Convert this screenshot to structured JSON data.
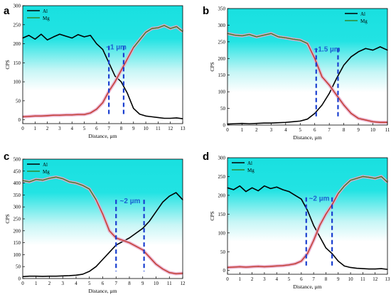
{
  "chart_data": [
    {
      "panel": "a",
      "type": "line",
      "xlabel": "Distance, µm",
      "ylabel": "CPS",
      "xlim": [
        0,
        13
      ],
      "ylim": [
        -10,
        300
      ],
      "xticks": [
        0,
        1,
        2,
        3,
        4,
        5,
        6,
        7,
        8,
        9,
        10,
        11,
        12,
        13
      ],
      "yticks": [
        0,
        50,
        100,
        150,
        200,
        250,
        300
      ],
      "legend": "top-left",
      "annotation": "~1 µm",
      "markers": [
        7.0,
        8.2
      ],
      "series": [
        {
          "name": "Al",
          "color": "#000000",
          "x": [
            0,
            0.5,
            1,
            1.5,
            2,
            2.5,
            3,
            3.5,
            4,
            4.5,
            5,
            5.5,
            6,
            6.5,
            7,
            7.5,
            8,
            8.5,
            9,
            9.5,
            10,
            10.5,
            11,
            11.5,
            12,
            12.5,
            13
          ],
          "y": [
            215,
            222,
            212,
            225,
            210,
            218,
            225,
            220,
            215,
            224,
            218,
            222,
            200,
            185,
            150,
            115,
            100,
            70,
            30,
            15,
            10,
            8,
            6,
            4,
            4,
            5,
            3
          ]
        },
        {
          "name": "Mg",
          "color": "#c0392b",
          "x": [
            0,
            0.5,
            1,
            1.5,
            2,
            2.5,
            3,
            3.5,
            4,
            4.5,
            5,
            5.5,
            6,
            6.5,
            7,
            7.5,
            8,
            8.5,
            9,
            9.5,
            10,
            10.5,
            11,
            11.5,
            12,
            12.5,
            13
          ],
          "y": [
            8,
            9,
            10,
            10,
            11,
            12,
            12,
            13,
            13,
            14,
            14,
            18,
            28,
            45,
            75,
            100,
            130,
            160,
            190,
            210,
            230,
            240,
            242,
            248,
            240,
            245,
            232
          ]
        }
      ]
    },
    {
      "panel": "b",
      "type": "line",
      "xlabel": "Distance, µm",
      "ylabel": "CPS",
      "xlim": [
        0,
        11
      ],
      "ylim": [
        0,
        350
      ],
      "xticks": [
        0,
        1,
        2,
        3,
        4,
        5,
        6,
        7,
        8,
        9,
        10,
        11
      ],
      "yticks": [
        0,
        50,
        100,
        150,
        200,
        250,
        300,
        350
      ],
      "legend": "top-right",
      "annotation": "~1.5 µm",
      "markers": [
        6.1,
        7.6
      ],
      "series": [
        {
          "name": "Al",
          "color": "#000000",
          "x": [
            0,
            0.5,
            1,
            1.5,
            2,
            2.5,
            3,
            3.5,
            4,
            4.5,
            5,
            5.5,
            6,
            6.5,
            7,
            7.5,
            8,
            8.5,
            9,
            9.5,
            10,
            10.5,
            11
          ],
          "y": [
            3,
            4,
            5,
            4,
            5,
            6,
            6,
            7,
            8,
            10,
            12,
            18,
            35,
            60,
            95,
            140,
            180,
            205,
            220,
            230,
            225,
            235,
            225
          ]
        },
        {
          "name": "Mg",
          "color": "#c0392b",
          "x": [
            0,
            0.5,
            1,
            1.5,
            2,
            2.5,
            3,
            3.5,
            4,
            4.5,
            5,
            5.5,
            6,
            6.5,
            7,
            7.5,
            8,
            8.5,
            9,
            9.5,
            10,
            10.5,
            11
          ],
          "y": [
            275,
            270,
            268,
            272,
            265,
            270,
            275,
            265,
            262,
            258,
            255,
            245,
            200,
            145,
            120,
            90,
            60,
            35,
            20,
            15,
            10,
            8,
            8
          ]
        }
      ]
    },
    {
      "panel": "c",
      "type": "line",
      "xlabel": "Distance, µm",
      "ylabel": "CPS",
      "xlim": [
        0,
        12
      ],
      "ylim": [
        0,
        500
      ],
      "xticks": [
        0,
        1,
        2,
        3,
        4,
        5,
        6,
        7,
        8,
        9,
        10,
        11,
        12
      ],
      "yticks": [
        0,
        50,
        100,
        150,
        200,
        250,
        300,
        350,
        400,
        450,
        500
      ],
      "legend": "top-left",
      "annotation": "~2 µm",
      "markers": [
        7.0,
        9.1
      ],
      "series": [
        {
          "name": "Al",
          "color": "#000000",
          "x": [
            0,
            0.5,
            1,
            1.5,
            2,
            2.5,
            3,
            3.5,
            4,
            4.5,
            5,
            5.5,
            6,
            6.5,
            7,
            7.5,
            8,
            8.5,
            9,
            9.5,
            10,
            10.5,
            11,
            11.5,
            12
          ],
          "y": [
            8,
            10,
            10,
            9,
            10,
            10,
            11,
            12,
            14,
            18,
            30,
            50,
            80,
            110,
            140,
            155,
            170,
            190,
            210,
            240,
            280,
            320,
            345,
            360,
            330
          ]
        },
        {
          "name": "Mg",
          "color": "#c0392b",
          "x": [
            0,
            0.5,
            1,
            1.5,
            2,
            2.5,
            3,
            3.5,
            4,
            4.5,
            5,
            5.5,
            6,
            6.5,
            7,
            7.5,
            8,
            8.5,
            9,
            9.5,
            10,
            10.5,
            11,
            11.5,
            12
          ],
          "y": [
            410,
            405,
            415,
            412,
            420,
            425,
            418,
            405,
            400,
            390,
            375,
            330,
            270,
            200,
            170,
            160,
            150,
            135,
            120,
            90,
            60,
            40,
            25,
            20,
            22
          ]
        }
      ]
    },
    {
      "panel": "d",
      "type": "line",
      "xlabel": "Distance, µm",
      "ylabel": "CPS",
      "xlim": [
        0,
        13
      ],
      "ylim": [
        -10,
        300
      ],
      "xticks": [
        0,
        1,
        2,
        3,
        4,
        5,
        6,
        7,
        8,
        9,
        10,
        11,
        12,
        13
      ],
      "yticks": [
        0,
        50,
        100,
        150,
        200,
        250,
        300
      ],
      "legend": "top-left",
      "annotation": "~2 µm",
      "markers": [
        6.4,
        8.5
      ],
      "series": [
        {
          "name": "Al",
          "color": "#000000",
          "x": [
            0,
            0.5,
            1,
            1.5,
            2,
            2.5,
            3,
            3.5,
            4,
            4.5,
            5,
            5.5,
            6,
            6.5,
            7,
            7.5,
            8,
            8.5,
            9,
            9.5,
            10,
            10.5,
            11,
            11.5,
            12,
            12.5,
            13
          ],
          "y": [
            220,
            215,
            225,
            210,
            220,
            212,
            225,
            218,
            222,
            215,
            210,
            200,
            190,
            160,
            120,
            90,
            60,
            45,
            25,
            12,
            8,
            6,
            5,
            4,
            4,
            5,
            3
          ]
        },
        {
          "name": "Mg",
          "color": "#c0392b",
          "x": [
            0,
            0.5,
            1,
            1.5,
            2,
            2.5,
            3,
            3.5,
            4,
            4.5,
            5,
            5.5,
            6,
            6.5,
            7,
            7.5,
            8,
            8.5,
            9,
            9.5,
            10,
            10.5,
            11,
            11.5,
            12,
            12.5,
            13
          ],
          "y": [
            8,
            9,
            10,
            9,
            10,
            11,
            10,
            11,
            12,
            13,
            15,
            18,
            25,
            45,
            80,
            120,
            150,
            175,
            205,
            225,
            240,
            245,
            250,
            248,
            245,
            250,
            235
          ]
        }
      ]
    }
  ],
  "theme": {
    "bg_top": "#2ee6e6",
    "bg_fade": "#ffffff",
    "dash_color": "#1a3fd0",
    "mg_highlight": "#e7a6c8",
    "al_color": "#000000",
    "mg_color": "#c0392b"
  }
}
